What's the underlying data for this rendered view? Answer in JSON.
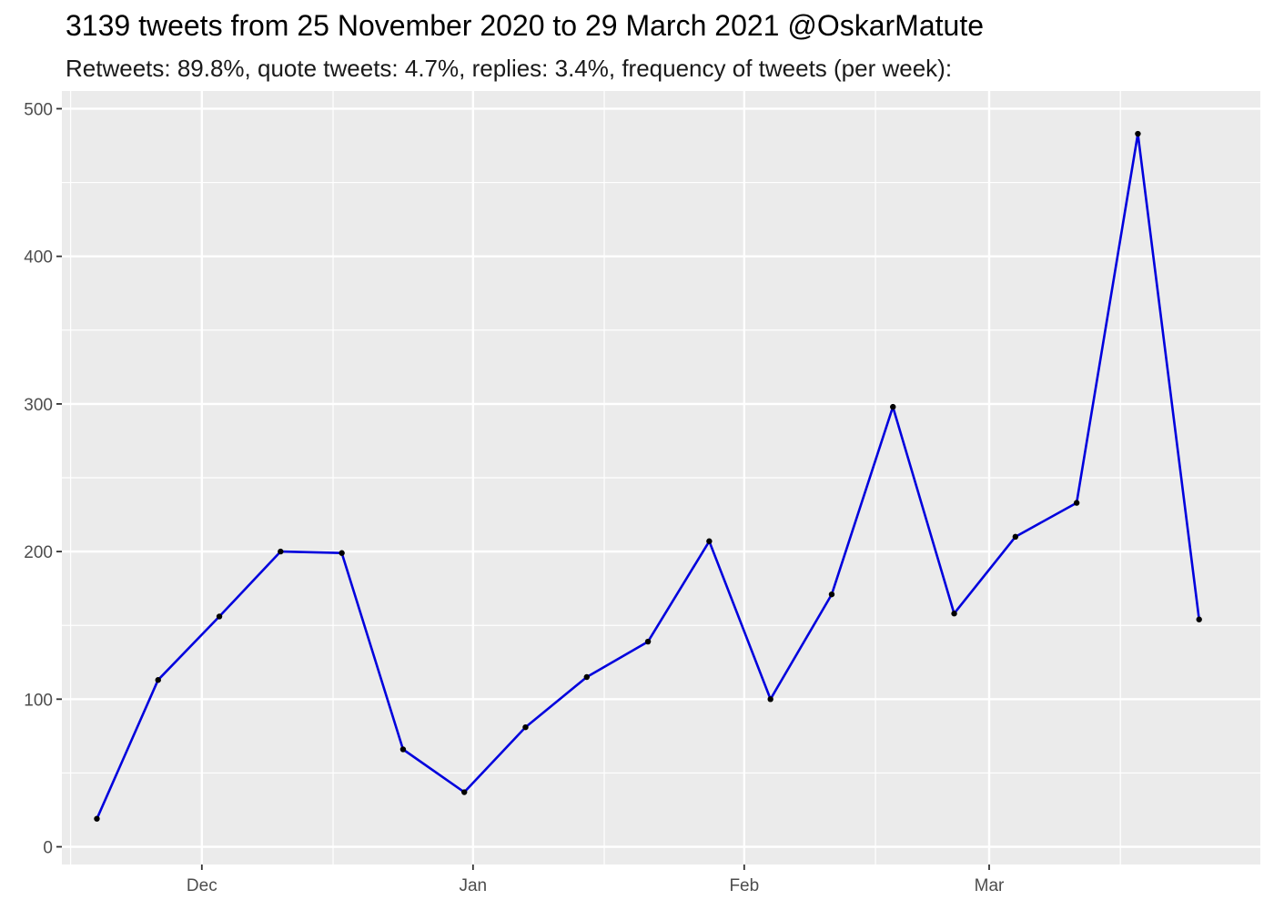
{
  "chart_data": {
    "type": "line",
    "title": "3139 tweets from 25 November 2020 to 29 March 2021 @OskarMatute",
    "subtitle": "Retweets: 89.8%, quote tweets: 4.7%, replies: 3.4%, frequency of tweets (per week):",
    "xlabel": "",
    "ylabel": "",
    "x_axis": {
      "type": "date",
      "range": [
        "2020-11-15",
        "2021-04-01"
      ],
      "ticks": [
        {
          "date": "2020-12-01",
          "label": "Dec"
        },
        {
          "date": "2021-01-01",
          "label": "Jan"
        },
        {
          "date": "2021-02-01",
          "label": "Feb"
        },
        {
          "date": "2021-03-01",
          "label": "Mar"
        }
      ],
      "minor_ticks": [
        "2020-11-16",
        "2020-12-16",
        "2021-01-16",
        "2021-02-16",
        "2021-03-16"
      ]
    },
    "y_axis": {
      "range": [
        -12,
        512
      ],
      "ticks": [
        0,
        100,
        200,
        300,
        400,
        500
      ],
      "minor_ticks": [
        50,
        150,
        250,
        350,
        450
      ]
    },
    "grid": true,
    "series": [
      {
        "color": "#0000dd",
        "marker_color": "#000000",
        "points": [
          {
            "x": "2020-11-19",
            "y": 19
          },
          {
            "x": "2020-11-26",
            "y": 113
          },
          {
            "x": "2020-12-03",
            "y": 156
          },
          {
            "x": "2020-12-10",
            "y": 200
          },
          {
            "x": "2020-12-17",
            "y": 199
          },
          {
            "x": "2020-12-24",
            "y": 66
          },
          {
            "x": "2020-12-31",
            "y": 37
          },
          {
            "x": "2021-01-07",
            "y": 81
          },
          {
            "x": "2021-01-14",
            "y": 115
          },
          {
            "x": "2021-01-21",
            "y": 139
          },
          {
            "x": "2021-01-28",
            "y": 207
          },
          {
            "x": "2021-02-04",
            "y": 100
          },
          {
            "x": "2021-02-11",
            "y": 171
          },
          {
            "x": "2021-02-18",
            "y": 298
          },
          {
            "x": "2021-02-25",
            "y": 158
          },
          {
            "x": "2021-03-04",
            "y": 210
          },
          {
            "x": "2021-03-11",
            "y": 233
          },
          {
            "x": "2021-03-18",
            "y": 483
          },
          {
            "x": "2021-03-25",
            "y": 154
          }
        ]
      }
    ],
    "background": "#ebebeb",
    "grid_color": "#ffffff"
  }
}
